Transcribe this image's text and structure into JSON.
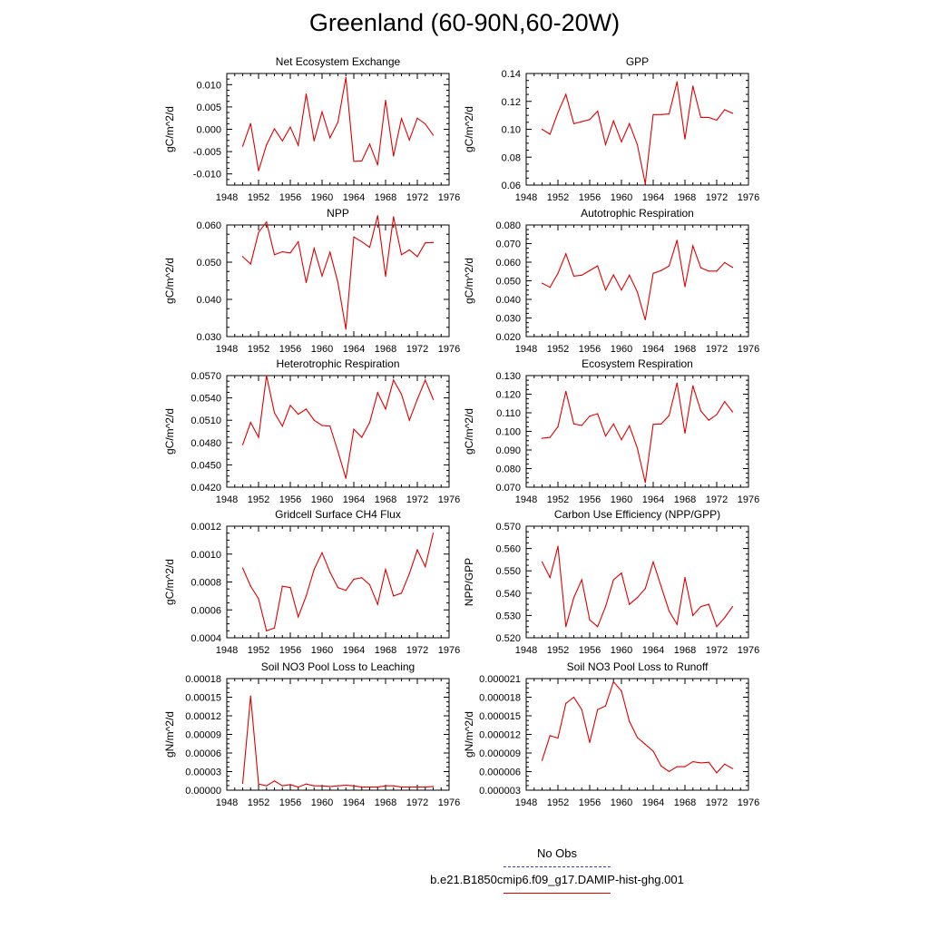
{
  "title": "Greenland (60-90N,60-20W)",
  "legend": {
    "obs_label": "No Obs",
    "model_label": "b.e21.B1850cmip6.f09_g17.DAMIP-hist-ghg.001",
    "obs_color": "#3040c0",
    "model_color": "#e00000"
  },
  "chart_data": [
    {
      "type": "line",
      "title": "Net Ecosystem Exchange",
      "ylabel": "gC/m^2/d",
      "xlim": [
        1948,
        1976
      ],
      "ylim": [
        -0.0125,
        0.0125
      ],
      "yticks": [
        "0.010",
        "0.005",
        "0.000",
        "-0.005",
        "-0.010"
      ],
      "yticks_values": [
        0.01,
        0.005,
        0.0,
        -0.005,
        -0.01
      ],
      "xticks": [
        "1948",
        "1952",
        "1956",
        "1960",
        "1964",
        "1968",
        "1972",
        "1976"
      ],
      "series": [
        {
          "x": [
            1950,
            1951,
            1952,
            1953,
            1954,
            1955,
            1956,
            1957,
            1958,
            1959,
            1960,
            1961,
            1962,
            1963,
            1964,
            1965,
            1966,
            1967,
            1968,
            1969,
            1970,
            1971,
            1972,
            1973,
            1974
          ],
          "values": [
            -0.0038,
            0.0013,
            -0.0093,
            -0.0035,
            0.0001,
            -0.0026,
            0.0005,
            -0.0036,
            0.0079,
            -0.0026,
            0.0039,
            -0.0019,
            0.0016,
            0.0116,
            -0.0072,
            -0.0071,
            -0.0033,
            -0.008,
            0.0065,
            -0.006,
            0.0024,
            -0.0024,
            0.0025,
            0.0012,
            -0.0013
          ]
        }
      ]
    },
    {
      "type": "line",
      "title": "GPP",
      "ylabel": "gC/m^2/d",
      "xlim": [
        1948,
        1976
      ],
      "ylim": [
        0.06,
        0.14
      ],
      "yticks": [
        "0.14",
        "0.12",
        "0.10",
        "0.08",
        "0.06"
      ],
      "yticks_values": [
        0.14,
        0.12,
        0.1,
        0.08,
        0.06
      ],
      "xticks": [
        "1948",
        "1952",
        "1956",
        "1960",
        "1964",
        "1968",
        "1972",
        "1976"
      ],
      "series": [
        {
          "x": [
            1950,
            1951,
            1952,
            1953,
            1954,
            1955,
            1956,
            1957,
            1958,
            1959,
            1960,
            1961,
            1962,
            1963,
            1964,
            1965,
            1966,
            1967,
            1968,
            1969,
            1970,
            1971,
            1972,
            1973,
            1974
          ],
          "values": [
            0.1,
            0.0965,
            0.112,
            0.125,
            0.104,
            0.1055,
            0.107,
            0.113,
            0.089,
            0.106,
            0.091,
            0.104,
            0.089,
            0.061,
            0.1105,
            0.1105,
            0.111,
            0.134,
            0.093,
            0.131,
            0.1085,
            0.1085,
            0.1065,
            0.114,
            0.1115
          ]
        }
      ]
    },
    {
      "type": "line",
      "title": "NPP",
      "ylabel": "gC/m^2/d",
      "xlim": [
        1948,
        1976
      ],
      "ylim": [
        0.03,
        0.06
      ],
      "yticks": [
        "0.060",
        "0.050",
        "0.040",
        "0.030"
      ],
      "yticks_values": [
        0.06,
        0.05,
        0.04,
        0.03
      ],
      "xticks": [
        "1948",
        "1952",
        "1956",
        "1960",
        "1964",
        "1968",
        "1972",
        "1976"
      ],
      "series": [
        {
          "x": [
            1950,
            1951,
            1952,
            1953,
            1954,
            1955,
            1956,
            1957,
            1958,
            1959,
            1960,
            1961,
            1962,
            1963,
            1964,
            1965,
            1966,
            1967,
            1968,
            1969,
            1970,
            1971,
            1972,
            1973,
            1974
          ],
          "values": [
            0.0515,
            0.0495,
            0.058,
            0.0608,
            0.052,
            0.0528,
            0.0525,
            0.0555,
            0.0445,
            0.0537,
            0.0463,
            0.0527,
            0.0445,
            0.032,
            0.0568,
            0.0555,
            0.054,
            0.0625,
            0.0462,
            0.0622,
            0.052,
            0.0533,
            0.0515,
            0.0552,
            0.0553
          ]
        }
      ]
    },
    {
      "type": "line",
      "title": "Autotrophic Respiration",
      "ylabel": "gC/m^2/d",
      "xlim": [
        1948,
        1976
      ],
      "ylim": [
        0.02,
        0.08
      ],
      "yticks": [
        "0.080",
        "0.070",
        "0.060",
        "0.050",
        "0.040",
        "0.030",
        "0.020"
      ],
      "yticks_values": [
        0.08,
        0.07,
        0.06,
        0.05,
        0.04,
        0.03,
        0.02
      ],
      "xticks": [
        "1948",
        "1952",
        "1956",
        "1960",
        "1964",
        "1968",
        "1972",
        "1976"
      ],
      "series": [
        {
          "x": [
            1950,
            1951,
            1952,
            1953,
            1954,
            1955,
            1956,
            1957,
            1958,
            1959,
            1960,
            1961,
            1962,
            1963,
            1964,
            1965,
            1966,
            1967,
            1968,
            1969,
            1970,
            1971,
            1972,
            1973,
            1974
          ],
          "values": [
            0.0487,
            0.0465,
            0.054,
            0.0645,
            0.0525,
            0.053,
            0.0555,
            0.058,
            0.045,
            0.0532,
            0.045,
            0.053,
            0.044,
            0.029,
            0.054,
            0.0555,
            0.058,
            0.0718,
            0.0468,
            0.0688,
            0.057,
            0.0552,
            0.0552,
            0.0598,
            0.0572
          ]
        }
      ]
    },
    {
      "type": "line",
      "title": "Heterotrophic Respiration",
      "ylabel": "gC/m^2/d",
      "xlim": [
        1948,
        1976
      ],
      "ylim": [
        0.042,
        0.057
      ],
      "yticks": [
        "0.0570",
        "0.0540",
        "0.0510",
        "0.0480",
        "0.0450",
        "0.0420"
      ],
      "yticks_values": [
        0.057,
        0.054,
        0.051,
        0.048,
        0.045,
        0.042
      ],
      "xticks": [
        "1948",
        "1952",
        "1956",
        "1960",
        "1964",
        "1968",
        "1972",
        "1976"
      ],
      "series": [
        {
          "x": [
            1950,
            1951,
            1952,
            1953,
            1954,
            1955,
            1956,
            1957,
            1958,
            1959,
            1960,
            1961,
            1962,
            1963,
            1964,
            1965,
            1966,
            1967,
            1968,
            1969,
            1970,
            1971,
            1972,
            1973,
            1974
          ],
          "values": [
            0.0477,
            0.0507,
            0.0487,
            0.057,
            0.052,
            0.0502,
            0.053,
            0.0518,
            0.0525,
            0.051,
            0.0503,
            0.0502,
            0.0468,
            0.0432,
            0.0498,
            0.0487,
            0.0507,
            0.0547,
            0.0525,
            0.0564,
            0.0545,
            0.051,
            0.0538,
            0.0564,
            0.0538
          ]
        }
      ]
    },
    {
      "type": "line",
      "title": "Ecosystem Respiration",
      "ylabel": "gC/m^2/d",
      "xlim": [
        1948,
        1976
      ],
      "ylim": [
        0.07,
        0.13
      ],
      "yticks": [
        "0.130",
        "0.120",
        "0.110",
        "0.100",
        "0.090",
        "0.080",
        "0.070"
      ],
      "yticks_values": [
        0.13,
        0.12,
        0.11,
        0.1,
        0.09,
        0.08,
        0.07
      ],
      "xticks": [
        "1948",
        "1952",
        "1956",
        "1960",
        "1964",
        "1968",
        "1972",
        "1976"
      ],
      "series": [
        {
          "x": [
            1950,
            1951,
            1952,
            1953,
            1954,
            1955,
            1956,
            1957,
            1958,
            1959,
            1960,
            1961,
            1962,
            1963,
            1964,
            1965,
            1966,
            1967,
            1968,
            1969,
            1970,
            1971,
            1972,
            1973,
            1974
          ],
          "values": [
            0.0963,
            0.0968,
            0.1025,
            0.1215,
            0.104,
            0.1032,
            0.1082,
            0.1095,
            0.0975,
            0.104,
            0.0955,
            0.103,
            0.091,
            0.0725,
            0.1038,
            0.104,
            0.1085,
            0.126,
            0.099,
            0.1245,
            0.111,
            0.106,
            0.109,
            0.116,
            0.1105
          ]
        }
      ]
    },
    {
      "type": "line",
      "title": "Gridcell Surface CH4 Flux",
      "ylabel": "gC/m^2/d",
      "xlim": [
        1948,
        1976
      ],
      "ylim": [
        0.0004,
        0.0012
      ],
      "yticks": [
        "0.0012",
        "0.0010",
        "0.0008",
        "0.0006",
        "0.0004"
      ],
      "yticks_values": [
        0.0012,
        0.001,
        0.0008,
        0.0006,
        0.0004
      ],
      "xticks": [
        "1948",
        "1952",
        "1956",
        "1960",
        "1964",
        "1968",
        "1972",
        "1976"
      ],
      "series": [
        {
          "x": [
            1950,
            1951,
            1952,
            1953,
            1954,
            1955,
            1956,
            1957,
            1958,
            1959,
            1960,
            1961,
            1962,
            1963,
            1964,
            1965,
            1966,
            1967,
            1968,
            1969,
            1970,
            1971,
            1972,
            1973,
            1974
          ],
          "values": [
            0.0009,
            0.00077,
            0.00068,
            0.00045,
            0.00047,
            0.00077,
            0.00076,
            0.00055,
            0.0007,
            0.00089,
            0.00101,
            0.00087,
            0.00076,
            0.00074,
            0.00082,
            0.00083,
            0.00078,
            0.00064,
            0.00089,
            0.0007,
            0.00072,
            0.00086,
            0.00103,
            0.00091,
            0.00115
          ]
        }
      ]
    },
    {
      "type": "line",
      "title": "Carbon Use Efficiency (NPP/GPP)",
      "ylabel": "NPP/GPP",
      "xlim": [
        1948,
        1976
      ],
      "ylim": [
        0.52,
        0.57
      ],
      "yticks": [
        "0.570",
        "0.560",
        "0.550",
        "0.540",
        "0.530",
        "0.520"
      ],
      "yticks_values": [
        0.57,
        0.56,
        0.55,
        0.54,
        0.53,
        0.52
      ],
      "xticks": [
        "1948",
        "1952",
        "1956",
        "1960",
        "1964",
        "1968",
        "1972",
        "1976"
      ],
      "series": [
        {
          "x": [
            1950,
            1951,
            1952,
            1953,
            1954,
            1955,
            1956,
            1957,
            1958,
            1959,
            1960,
            1961,
            1962,
            1963,
            1964,
            1965,
            1966,
            1967,
            1968,
            1969,
            1970,
            1971,
            1972,
            1973,
            1974
          ],
          "values": [
            0.554,
            0.547,
            0.561,
            0.525,
            0.538,
            0.546,
            0.528,
            0.525,
            0.534,
            0.546,
            0.549,
            0.535,
            0.538,
            0.542,
            0.554,
            0.543,
            0.532,
            0.526,
            0.547,
            0.53,
            0.534,
            0.535,
            0.525,
            0.529,
            0.534
          ]
        }
      ]
    },
    {
      "type": "line",
      "title": "Soil NO3 Pool Loss to Leaching",
      "ylabel": "gN/m^2/d",
      "xlim": [
        1948,
        1976
      ],
      "ylim": [
        0,
        0.00018
      ],
      "yticks": [
        "0.00018",
        "0.00015",
        "0.00012",
        "0.00009",
        "0.00006",
        "0.00003",
        "0.00000"
      ],
      "yticks_values": [
        0.00018,
        0.00015,
        0.00012,
        9e-05,
        6e-05,
        3e-05,
        0
      ],
      "xticks": [
        "1948",
        "1952",
        "1956",
        "1960",
        "1964",
        "1968",
        "1972",
        "1976"
      ],
      "series": [
        {
          "x": [
            1950,
            1951,
            1952,
            1953,
            1954,
            1955,
            1956,
            1957,
            1958,
            1959,
            1960,
            1961,
            1962,
            1963,
            1964,
            1965,
            1966,
            1967,
            1968,
            1969,
            1970,
            1971,
            1972,
            1973,
            1974
          ],
          "values": [
            1.1e-05,
            0.000152,
            1e-05,
            7e-06,
            1.5e-05,
            7e-06,
            9e-06,
            5e-06,
            1e-05,
            7e-06,
            7e-06,
            6e-06,
            7e-06,
            8e-06,
            7e-06,
            5e-06,
            5e-06,
            5e-06,
            7e-06,
            7e-06,
            5e-06,
            5e-06,
            5e-06,
            5e-06,
            6e-06
          ]
        }
      ]
    },
    {
      "type": "line",
      "title": "Soil NO3 Pool Loss to Runoff",
      "ylabel": "gN/m^2/d",
      "xlim": [
        1948,
        1976
      ],
      "ylim": [
        3e-06,
        2.1e-05
      ],
      "yticks": [
        "0.000021",
        "0.000018",
        "0.000015",
        "0.000012",
        "0.000009",
        "0.000006",
        "0.000003"
      ],
      "yticks_values": [
        2.1e-05,
        1.8e-05,
        1.5e-05,
        1.2e-05,
        9e-06,
        6e-06,
        3e-06
      ],
      "xticks": [
        "1948",
        "1952",
        "1956",
        "1960",
        "1964",
        "1968",
        "1972",
        "1976"
      ],
      "series": [
        {
          "x": [
            1950,
            1951,
            1952,
            1953,
            1954,
            1955,
            1956,
            1957,
            1958,
            1959,
            1960,
            1961,
            1962,
            1963,
            1964,
            1965,
            1966,
            1967,
            1968,
            1969,
            1970,
            1971,
            1972,
            1973,
            1974
          ],
          "values": [
            7.8e-06,
            1.18e-05,
            1.14e-05,
            1.7e-05,
            1.8e-05,
            1.6e-05,
            1.07e-05,
            1.6e-05,
            1.66e-05,
            2.05e-05,
            1.9e-05,
            1.41e-05,
            1.15e-05,
            1.04e-05,
            9.3e-06,
            6.9e-06,
            6e-06,
            6.8e-06,
            6.8e-06,
            7.6e-06,
            7.4e-06,
            7.5e-06,
            5.8e-06,
            7.2e-06,
            6.5e-06
          ]
        }
      ]
    }
  ]
}
